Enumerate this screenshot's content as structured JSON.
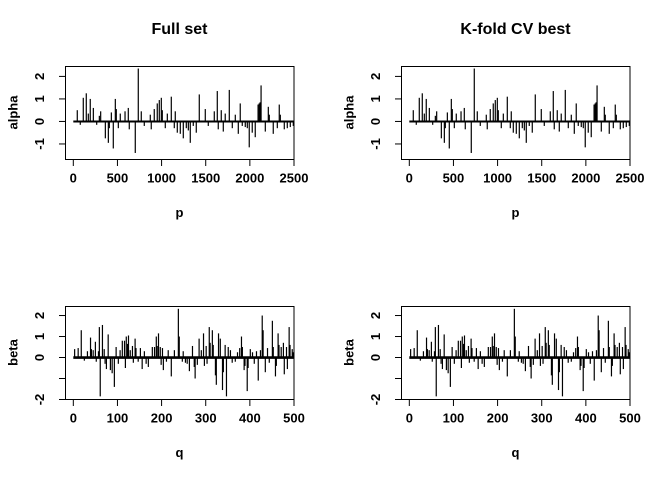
{
  "figure": {
    "background": "#ffffff",
    "ink": "#000000"
  },
  "chart_data": {
    "type": "bar",
    "subtype": "spike-plot-grid",
    "layout": "2x2",
    "grid": false,
    "legend": null,
    "panels": [
      {
        "title": "Full set",
        "ylabel": "alpha",
        "xlabel": "p",
        "dataset": "alpha",
        "xlim": [
          -88.4,
          2500
        ],
        "ylim": [
          -1.69,
          2.44
        ],
        "x_ticks": [
          0,
          500,
          1000,
          1500,
          2000,
          2500
        ],
        "y_ticks": [
          -1,
          0,
          1,
          2
        ],
        "y_tick_labels": [
          "-1",
          "0",
          "1",
          "2"
        ],
        "zero_line_width": 2
      },
      {
        "title": "K-fold CV best",
        "ylabel": "alpha",
        "xlabel": "p",
        "dataset": "alpha",
        "xlim": [
          -88.4,
          2500
        ],
        "ylim": [
          -1.69,
          2.44
        ],
        "x_ticks": [
          0,
          500,
          1000,
          1500,
          2000,
          2500
        ],
        "y_ticks": [
          -1,
          0,
          1,
          2
        ],
        "y_tick_labels": [
          "-1",
          "0",
          "1",
          "2"
        ],
        "zero_line_width": 2
      },
      {
        "title": "",
        "ylabel": "beta",
        "xlabel": "q",
        "dataset": "beta",
        "xlim": [
          -17.7,
          500
        ],
        "ylim": [
          -2.0,
          2.43
        ],
        "x_ticks": [
          0,
          100,
          200,
          300,
          400,
          500
        ],
        "y_ticks": [
          -2,
          -1,
          0,
          1,
          2
        ],
        "y_tick_labels": [
          "-2",
          "",
          "0",
          "1",
          "2"
        ],
        "zero_line_width": 2.6
      },
      {
        "title": "",
        "ylabel": "beta",
        "xlabel": "q",
        "dataset": "beta",
        "xlim": [
          -17.7,
          500
        ],
        "ylim": [
          -2.0,
          2.43
        ],
        "x_ticks": [
          0,
          100,
          200,
          300,
          400,
          500
        ],
        "y_ticks": [
          -2,
          -1,
          0,
          1,
          2
        ],
        "y_tick_labels": [
          "-2",
          "",
          "0",
          "1",
          "2"
        ],
        "zero_line_width": 2.6
      }
    ],
    "datasets": {
      "alpha": {
        "x": [
          45,
          79,
          113,
          147,
          170,
          192,
          227,
          265,
          295,
          310,
          363,
          397,
          408,
          431,
          453,
          476,
          487,
          510,
          532,
          586,
          623,
          634,
          702,
          736,
          770,
          804,
          872,
          883,
          917,
          951,
          974,
          997,
          1008,
          1042,
          1065,
          1110,
          1144,
          1155,
          1178,
          1212,
          1246,
          1280,
          1303,
          1325,
          1359,
          1393,
          1427,
          1495,
          1529,
          1597,
          1631,
          1642,
          1676,
          1699,
          1721,
          1767,
          1801,
          1835,
          1869,
          1891,
          1914,
          1948,
          1971,
          1993,
          2027,
          2061,
          2093,
          2105,
          2116,
          2127,
          2175,
          2209,
          2220,
          2265,
          2311,
          2333,
          2345,
          2390,
          2424,
          2458,
          2492
        ],
        "y": [
          0.5,
          -0.15,
          1.05,
          1.25,
          0.35,
          1.0,
          0.6,
          -0.15,
          0.25,
          0.45,
          -0.75,
          -0.95,
          -0.3,
          0.4,
          -1.2,
          1.0,
          0.55,
          -0.3,
          0.35,
          0.45,
          0.6,
          -0.35,
          -1.4,
          2.35,
          0.45,
          -0.2,
          0.3,
          -0.35,
          0.55,
          0.8,
          0.95,
          1.05,
          0.5,
          -0.3,
          0.35,
          1.1,
          -0.3,
          0.45,
          -0.5,
          -0.55,
          -0.75,
          -0.3,
          -0.4,
          -0.95,
          -0.2,
          -0.5,
          1.2,
          0.55,
          -0.2,
          0.45,
          1.35,
          -0.35,
          0.5,
          -0.45,
          0.35,
          1.4,
          -0.3,
          0.3,
          -0.55,
          0.8,
          -0.2,
          -0.25,
          -0.3,
          -1.15,
          -0.5,
          -0.7,
          0.75,
          0.8,
          0.85,
          1.6,
          -0.45,
          0.65,
          0.3,
          -0.55,
          -0.3,
          0.75,
          0.3,
          -0.35,
          -0.3,
          -0.25,
          -0.2
        ]
      },
      "beta": {
        "x": [
          3,
          11,
          18,
          25,
          32,
          39,
          41,
          45,
          50,
          52,
          57,
          59,
          61,
          66,
          70,
          72,
          75,
          79,
          84,
          88,
          93,
          97,
          102,
          106,
          111,
          116,
          118,
          120,
          123,
          125,
          129,
          134,
          136,
          140,
          142,
          147,
          152,
          156,
          161,
          165,
          170,
          179,
          184,
          188,
          190,
          193,
          197,
          199,
          202,
          204,
          211,
          215,
          222,
          229,
          238,
          240,
          247,
          249,
          254,
          258,
          263,
          270,
          274,
          276,
          281,
          285,
          290,
          295,
          297,
          301,
          303,
          308,
          310,
          315,
          317,
          322,
          324,
          329,
          333,
          338,
          340,
          344,
          347,
          351,
          356,
          360,
          367,
          372,
          377,
          381,
          383,
          387,
          389,
          394,
          396,
          401,
          406,
          410,
          415,
          419,
          424,
          428,
          430,
          435,
          440,
          444,
          451,
          453,
          458,
          460,
          464,
          466,
          471,
          476,
          478,
          483,
          485,
          489,
          491,
          496,
          498
        ],
        "y": [
          0.4,
          0.45,
          1.3,
          -0.15,
          0.3,
          0.95,
          0.4,
          0.35,
          0.75,
          -0.2,
          0.3,
          1.45,
          -1.85,
          1.55,
          0.4,
          -0.3,
          -0.55,
          1.1,
          -0.6,
          -0.75,
          -1.4,
          0.5,
          -0.3,
          0.35,
          0.8,
          0.8,
          -0.5,
          1.0,
          0.65,
          1.05,
          0.35,
          0.55,
          -0.25,
          0.9,
          0.45,
          -0.2,
          0.45,
          -0.55,
          0.3,
          -0.3,
          -0.45,
          0.5,
          0.5,
          1.0,
          0.55,
          1.15,
          0.5,
          -0.35,
          0.45,
          -0.6,
          -0.2,
          0.35,
          -0.9,
          0.35,
          2.32,
          1.0,
          -0.2,
          0.3,
          -0.25,
          -0.3,
          -0.65,
          0.55,
          -0.45,
          -1.0,
          -0.35,
          0.9,
          0.35,
          1.15,
          -0.4,
          0.55,
          -0.3,
          1.45,
          0.7,
          1.3,
          0.6,
          -0.85,
          -1.3,
          1.15,
          0.9,
          -1.55,
          -0.7,
          0.6,
          -1.85,
          0.5,
          0.35,
          -0.25,
          -0.2,
          0.25,
          0.45,
          1.0,
          0.5,
          -0.6,
          -0.4,
          -1.6,
          -0.5,
          0.4,
          0.25,
          -0.3,
          0.3,
          -1.1,
          0.35,
          2.0,
          1.3,
          -0.7,
          0.45,
          -0.25,
          1.75,
          0.5,
          -0.9,
          -0.4,
          1.15,
          0.6,
          0.5,
          0.7,
          -0.8,
          0.5,
          -0.55,
          1.45,
          0.6,
          0.4,
          0.25
        ]
      }
    }
  }
}
